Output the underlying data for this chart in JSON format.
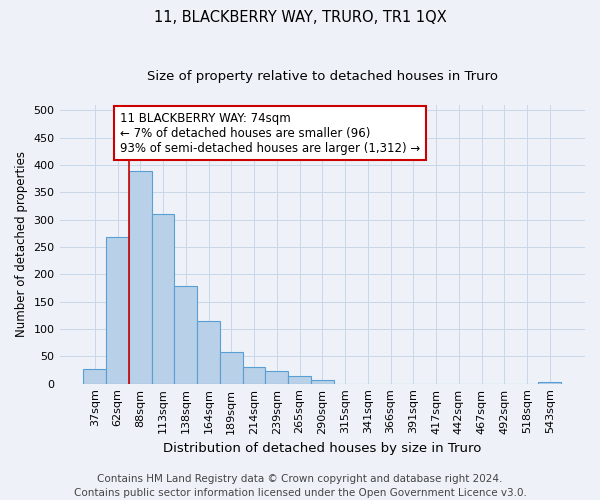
{
  "title": "11, BLACKBERRY WAY, TRURO, TR1 1QX",
  "subtitle": "Size of property relative to detached houses in Truro",
  "xlabel": "Distribution of detached houses by size in Truro",
  "ylabel": "Number of detached properties",
  "categories": [
    "37sqm",
    "62sqm",
    "88sqm",
    "113sqm",
    "138sqm",
    "164sqm",
    "189sqm",
    "214sqm",
    "239sqm",
    "265sqm",
    "290sqm",
    "315sqm",
    "341sqm",
    "366sqm",
    "391sqm",
    "417sqm",
    "442sqm",
    "467sqm",
    "492sqm",
    "518sqm",
    "543sqm"
  ],
  "values": [
    27,
    268,
    390,
    310,
    178,
    115,
    58,
    30,
    24,
    14,
    6,
    0,
    0,
    0,
    0,
    0,
    0,
    0,
    0,
    0,
    3
  ],
  "bar_color": "#b8d0e8",
  "bar_edge_color": "#5a9fd4",
  "bar_linewidth": 0.8,
  "grid_color": "#c8d8e8",
  "vline_color": "#cc0000",
  "vline_linewidth": 1.2,
  "vline_x": 1.5,
  "annotation_line1": "11 BLACKBERRY WAY: 74sqm",
  "annotation_line2": "← 7% of detached houses are smaller (96)",
  "annotation_line3": "93% of semi-detached houses are larger (1,312) →",
  "annotation_box_color": "white",
  "annotation_box_edge": "#cc0000",
  "ylim": [
    0,
    510
  ],
  "yticks": [
    0,
    50,
    100,
    150,
    200,
    250,
    300,
    350,
    400,
    450,
    500
  ],
  "footer1": "Contains HM Land Registry data © Crown copyright and database right 2024.",
  "footer2": "Contains public sector information licensed under the Open Government Licence v3.0.",
  "background_color": "#eef2f8",
  "title_fontsize": 10.5,
  "subtitle_fontsize": 9.5,
  "xlabel_fontsize": 9.5,
  "ylabel_fontsize": 8.5,
  "tick_fontsize": 8,
  "annotation_fontsize": 8.5,
  "footer_fontsize": 7.5
}
